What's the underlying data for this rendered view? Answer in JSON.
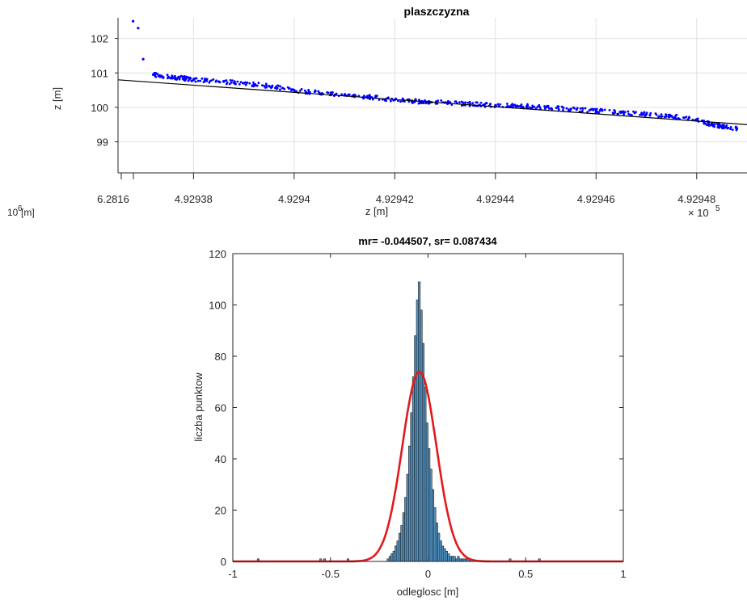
{
  "chart_data": [
    {
      "type": "scatter",
      "title": "plaszczyzna",
      "xlabel": "z [m]",
      "ylabel": "z [m]",
      "x_exponent_label": "× 10",
      "x_exponent_power": "5",
      "x_offset_tick_label": "6.2816",
      "clipped_label_fragment": "10",
      "clipped_label_power": "6",
      "clipped_label_unit": "[m]",
      "xlim": [
        4.929365,
        4.92949
      ],
      "ylim": [
        98.1,
        102.6
      ],
      "x_ticks": [
        4.92938,
        4.9294,
        4.92942,
        4.92944,
        4.92946,
        4.92948
      ],
      "x_tick_labels": [
        "4.92938",
        "4.9294",
        "4.92942",
        "4.92944",
        "4.92946",
        "4.92948"
      ],
      "y_ticks": [
        99,
        100,
        101,
        102
      ],
      "y_tick_labels": [
        "99",
        "100",
        "101",
        "102"
      ],
      "grid": true,
      "fit_line": {
        "x": [
          4.929365,
          4.92949
        ],
        "y": [
          100.8,
          99.5
        ]
      },
      "series": [
        {
          "color": "#0000ff",
          "x": [
            4.929368,
            4.929369,
            4.92937,
            4.929372,
            4.929375,
            4.929378,
            4.92938,
            4.929385,
            4.92939,
            4.929395,
            4.9294,
            4.929405,
            4.92941,
            4.929415,
            4.92942,
            4.929425,
            4.92943,
            4.929435,
            4.92944,
            4.929445,
            4.92945,
            4.929455,
            4.92946,
            4.929465,
            4.92947,
            4.929475,
            4.92948,
            4.929483,
            4.929485,
            4.929488
          ],
          "y": [
            102.5,
            102.3,
            101.4,
            100.95,
            100.88,
            100.85,
            100.8,
            100.75,
            100.7,
            100.62,
            100.5,
            100.42,
            100.35,
            100.3,
            100.22,
            100.17,
            100.14,
            100.1,
            100.06,
            100.04,
            100.0,
            99.95,
            99.9,
            99.86,
            99.8,
            99.75,
            99.65,
            99.5,
            99.45,
            99.38
          ]
        }
      ]
    },
    {
      "type": "bar",
      "title": "mr= -0.044507, sr= 0.087434",
      "xlabel": "odleglosc [m]",
      "ylabel": "liczba punktow",
      "xlim": [
        -1,
        1
      ],
      "ylim": [
        0,
        120
      ],
      "x_ticks": [
        -1,
        -0.5,
        0,
        0.5,
        1
      ],
      "x_tick_labels": [
        "-1",
        "-0.5",
        "0",
        "0.5",
        "1"
      ],
      "y_ticks": [
        0,
        20,
        40,
        60,
        80,
        100,
        120
      ],
      "y_tick_labels": [
        "0",
        "20",
        "40",
        "60",
        "80",
        "100",
        "120"
      ],
      "bar_color": "#4f94c8",
      "curve_color": "#e31a1c",
      "bins": {
        "centers": [
          -0.87,
          -0.55,
          -0.53,
          -0.41,
          -0.205,
          -0.195,
          -0.185,
          -0.175,
          -0.165,
          -0.155,
          -0.145,
          -0.135,
          -0.125,
          -0.115,
          -0.105,
          -0.095,
          -0.085,
          -0.075,
          -0.065,
          -0.055,
          -0.045,
          -0.035,
          -0.025,
          -0.015,
          -0.005,
          0.005,
          0.015,
          0.025,
          0.035,
          0.045,
          0.055,
          0.065,
          0.075,
          0.085,
          0.095,
          0.105,
          0.115,
          0.125,
          0.135,
          0.145,
          0.155,
          0.165,
          0.175,
          0.185,
          0.195,
          0.205,
          0.215,
          0.42,
          0.57
        ],
        "counts": [
          1,
          1,
          1,
          1,
          1,
          2,
          3,
          4,
          6,
          8,
          11,
          14,
          19,
          25,
          34,
          45,
          58,
          72,
          88,
          102,
          109,
          98,
          85,
          68,
          54,
          44,
          36,
          28,
          21,
          15,
          11,
          8,
          6,
          5,
          4,
          3,
          2,
          2,
          2,
          1,
          2,
          1,
          1,
          1,
          1,
          1,
          1,
          1,
          1
        ]
      },
      "fit": {
        "type": "normal",
        "mean": -0.044507,
        "std": 0.087434,
        "peak": 74
      }
    }
  ]
}
